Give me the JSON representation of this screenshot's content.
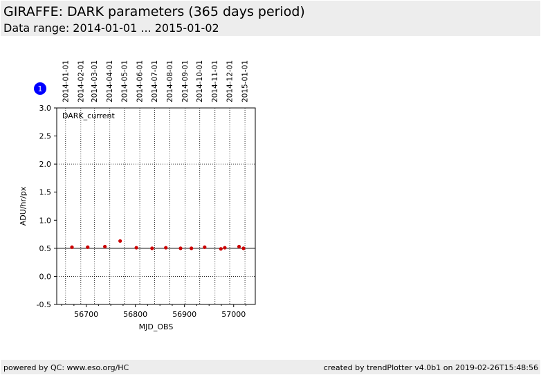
{
  "header": {
    "title": "GIRAFFE: DARK parameters (365 days period)",
    "subtitle": "Data range: 2014-01-01 ... 2015-01-02"
  },
  "footer": {
    "left": "powered by QC: www.eso.org/HC",
    "right": "created by trendPlotter v4.0b1 on 2019-02-26T15:48:56"
  },
  "panel": {
    "badge": "1",
    "badge_color": "#0000ff"
  },
  "chart_data": {
    "type": "scatter",
    "annotation": "DARK_current",
    "xlabel": "MJD_OBS",
    "ylabel": "ADU/hr/px",
    "xlim": [
      56640,
      57044
    ],
    "ylim": [
      -0.5,
      3.0
    ],
    "x_ticks": [
      56700,
      56800,
      56900,
      57000
    ],
    "y_ticks": [
      -0.5,
      0.0,
      0.5,
      1.0,
      1.5,
      2.0,
      2.5,
      3.0
    ],
    "y_grid": [
      0.0,
      2.0
    ],
    "reference_line": 0.5,
    "date_ticks": [
      {
        "label": "2014-01-01",
        "mjd": 56658
      },
      {
        "label": "2014-02-01",
        "mjd": 56689
      },
      {
        "label": "2014-03-01",
        "mjd": 56717
      },
      {
        "label": "2014-04-01",
        "mjd": 56748
      },
      {
        "label": "2014-05-01",
        "mjd": 56778
      },
      {
        "label": "2014-06-01",
        "mjd": 56809
      },
      {
        "label": "2014-07-01",
        "mjd": 56839
      },
      {
        "label": "2014-08-01",
        "mjd": 56870
      },
      {
        "label": "2014-09-01",
        "mjd": 56901
      },
      {
        "label": "2014-10-01",
        "mjd": 56931
      },
      {
        "label": "2014-11-01",
        "mjd": 56962
      },
      {
        "label": "2014-12-01",
        "mjd": 56992
      },
      {
        "label": "2015-01-01",
        "mjd": 57023
      }
    ],
    "marker_color": "#cc0000",
    "points": [
      {
        "x": 56671,
        "y": 0.52
      },
      {
        "x": 56703,
        "y": 0.52
      },
      {
        "x": 56738,
        "y": 0.53
      },
      {
        "x": 56769,
        "y": 0.63
      },
      {
        "x": 56802,
        "y": 0.51
      },
      {
        "x": 56834,
        "y": 0.5
      },
      {
        "x": 56862,
        "y": 0.51
      },
      {
        "x": 56892,
        "y": 0.5
      },
      {
        "x": 56914,
        "y": 0.5
      },
      {
        "x": 56941,
        "y": 0.52
      },
      {
        "x": 56974,
        "y": 0.49
      },
      {
        "x": 56982,
        "y": 0.51
      },
      {
        "x": 57011,
        "y": 0.53
      },
      {
        "x": 57020,
        "y": 0.5
      }
    ]
  }
}
